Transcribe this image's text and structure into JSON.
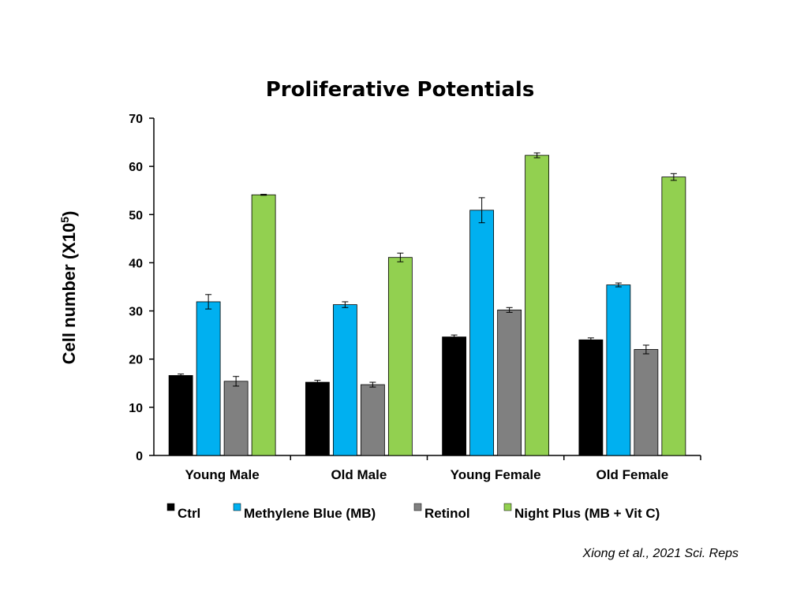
{
  "chart_data": {
    "type": "bar",
    "title": "Proliferative Potentials",
    "ylabel": {
      "text": "Cell number (X10",
      "sup": "5",
      "close": ")"
    },
    "xlabel": "",
    "ylim": [
      0,
      70
    ],
    "yticks": [
      0,
      10,
      20,
      30,
      40,
      50,
      60,
      70
    ],
    "grid": false,
    "legend_position": "bottom",
    "categories": [
      "Young Male",
      "Old Male",
      "Young Female",
      "Old Female"
    ],
    "series": [
      {
        "name": "Ctrl",
        "color": "#000000",
        "values": [
          16.6,
          15.2,
          24.6,
          24.0
        ],
        "errors": [
          0.3,
          0.4,
          0.4,
          0.4
        ]
      },
      {
        "name": "Methylene Blue (MB)",
        "color": "#00B0F0",
        "values": [
          31.9,
          31.3,
          50.9,
          35.4
        ],
        "errors": [
          1.5,
          0.6,
          2.6,
          0.4
        ]
      },
      {
        "name": "Retinol",
        "color": "#808080",
        "values": [
          15.4,
          14.7,
          30.2,
          22.0
        ],
        "errors": [
          1.0,
          0.5,
          0.5,
          0.9
        ]
      },
      {
        "name": "Night Plus (MB + Vit C)",
        "color": "#92D050",
        "values": [
          54.1,
          41.1,
          62.3,
          57.8
        ],
        "errors": [
          0.1,
          0.9,
          0.5,
          0.7
        ]
      }
    ]
  },
  "citation": "Xiong et al., 2021 Sci. Reps"
}
